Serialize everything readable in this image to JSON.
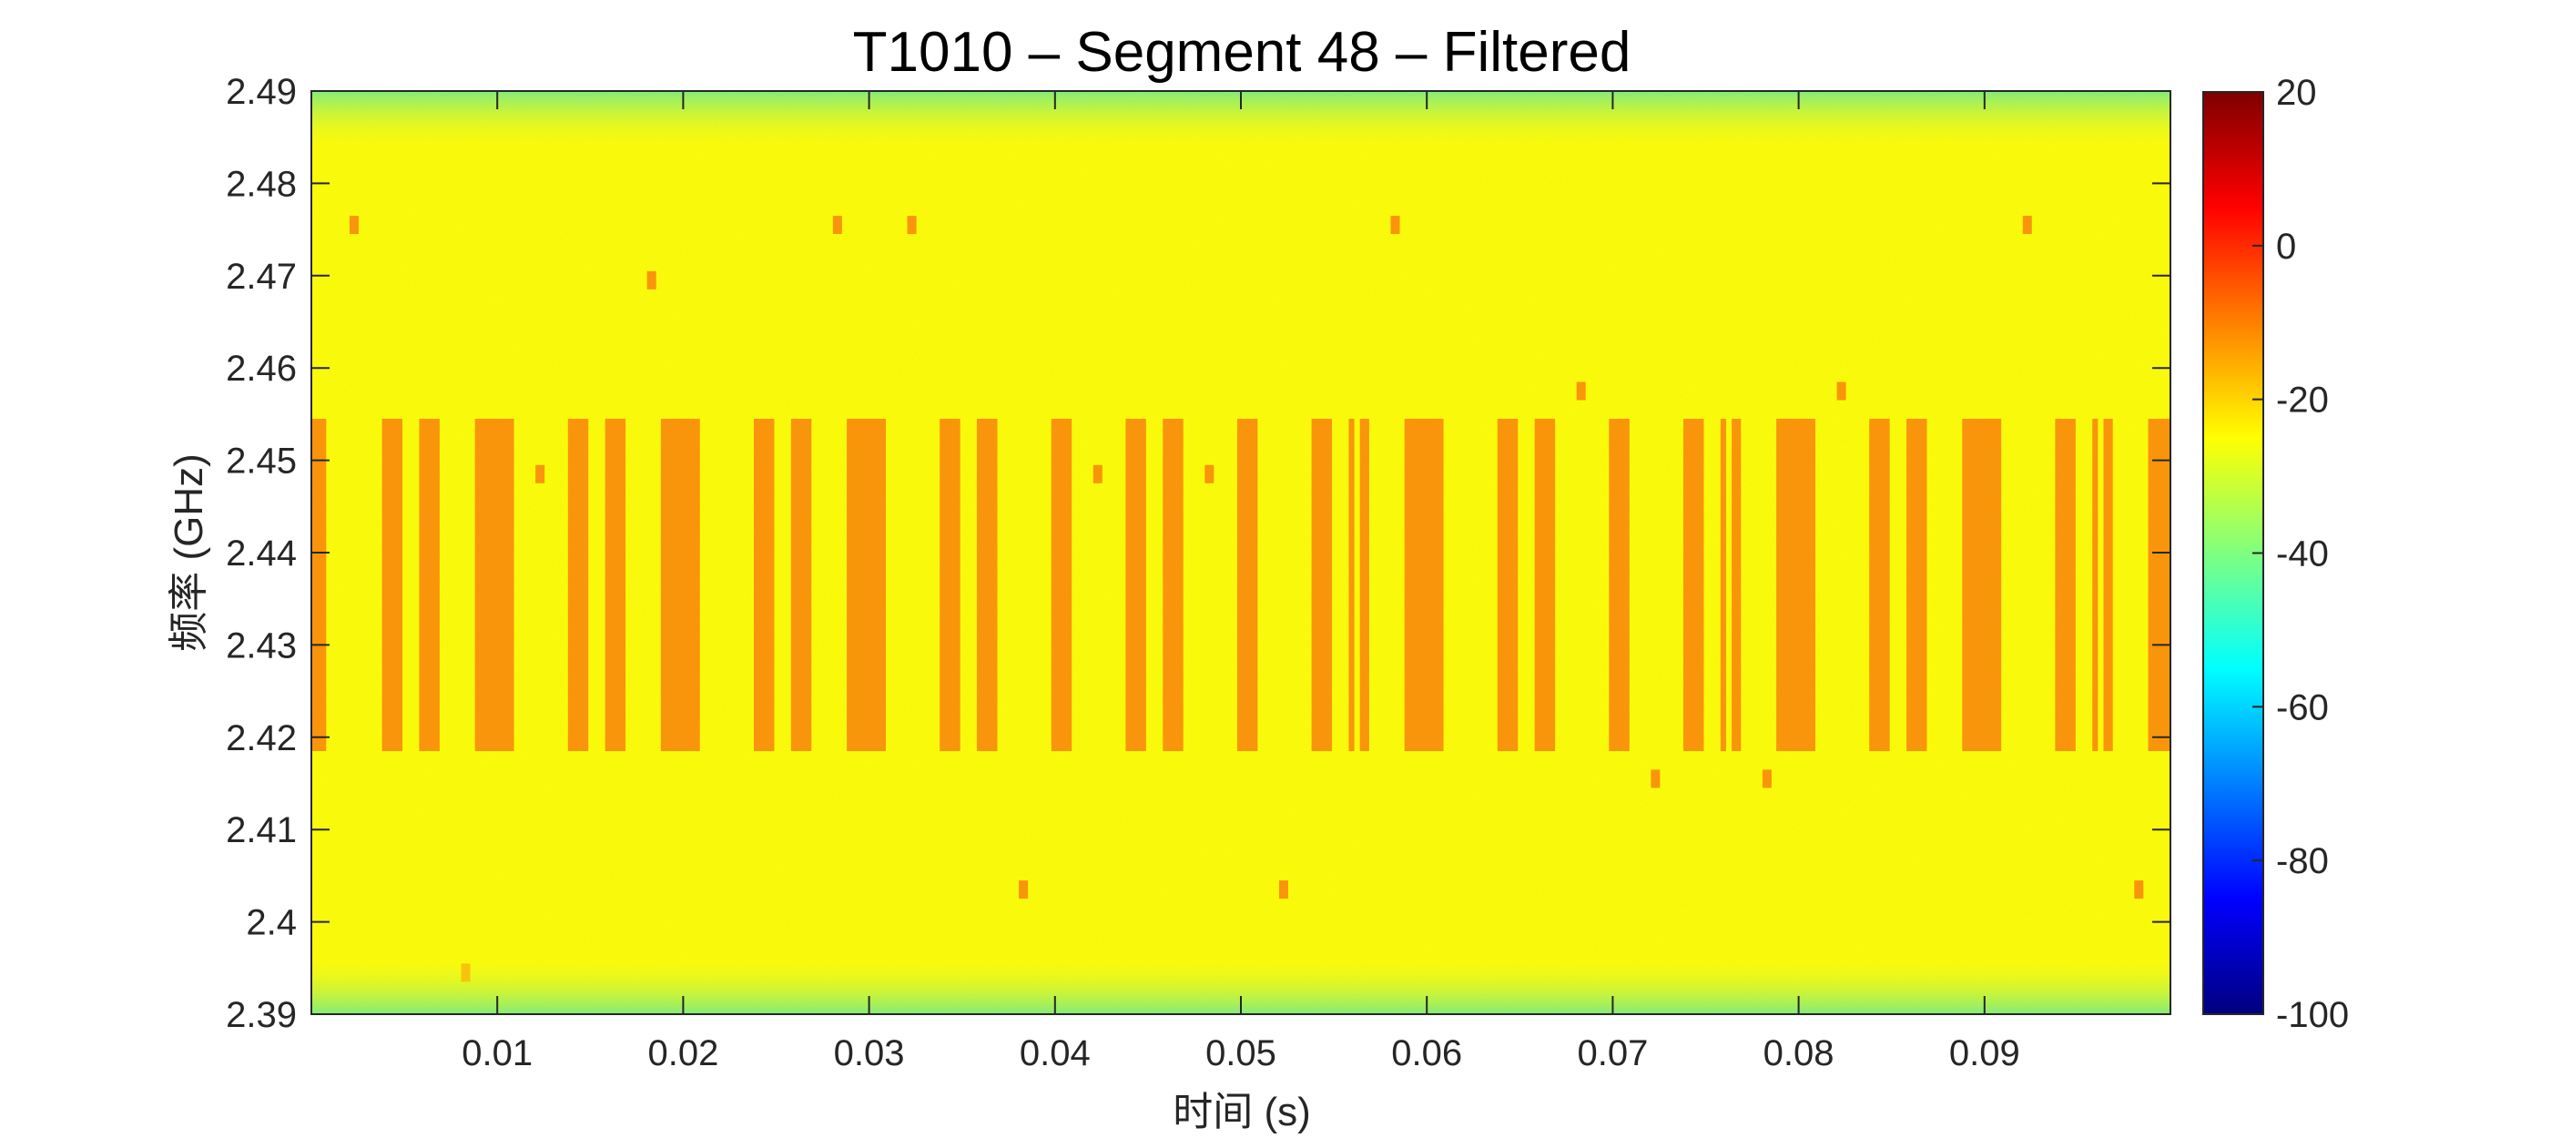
{
  "chart_data": {
    "type": "heatmap",
    "title": "T1010 – Segment 48 – Filtered",
    "xlabel": "时间 (s)",
    "ylabel": "频率 (GHz)",
    "xlim": [
      0,
      0.1
    ],
    "ylim": [
      2.39,
      2.49
    ],
    "x_ticks": [
      0.01,
      0.02,
      0.03,
      0.04,
      0.05,
      0.06,
      0.07,
      0.08,
      0.09
    ],
    "x_tick_labels": [
      "0.01",
      "0.02",
      "0.03",
      "0.04",
      "0.05",
      "0.06",
      "0.07",
      "0.08",
      "0.09"
    ],
    "y_ticks": [
      2.39,
      2.4,
      2.41,
      2.42,
      2.43,
      2.44,
      2.45,
      2.46,
      2.47,
      2.48,
      2.49
    ],
    "y_tick_labels": [
      "2.39",
      "2.4",
      "2.41",
      "2.42",
      "2.43",
      "2.44",
      "2.45",
      "2.46",
      "2.47",
      "2.48",
      "2.49"
    ],
    "colormap": "jet",
    "color_limits": [
      -100,
      20
    ],
    "colorbar_ticks": [
      20,
      0,
      -20,
      -40,
      -60,
      -80,
      -100
    ],
    "colorbar_tick_labels": [
      "20",
      "0",
      "-20",
      "-40",
      "-60",
      "-80",
      "-100"
    ],
    "background_level": -25,
    "band_edge_level": -37,
    "burst_level": -12,
    "burst_freq_range": [
      2.4185,
      2.4545
    ],
    "bursts": [
      [
        0.0,
        0.0008
      ],
      [
        0.0038,
        0.0049
      ],
      [
        0.0058,
        0.0069
      ],
      [
        0.0088,
        0.0109
      ],
      [
        0.0138,
        0.0149
      ],
      [
        0.0158,
        0.0169
      ],
      [
        0.0188,
        0.0209
      ],
      [
        0.0238,
        0.0249
      ],
      [
        0.0258,
        0.0269
      ],
      [
        0.0288,
        0.0309
      ],
      [
        0.0338,
        0.0349
      ],
      [
        0.0358,
        0.0369
      ],
      [
        0.0398,
        0.0409
      ],
      [
        0.0438,
        0.0449
      ],
      [
        0.0458,
        0.0469
      ],
      [
        0.0498,
        0.0509
      ],
      [
        0.0538,
        0.0549
      ],
      [
        0.0558,
        0.0561
      ],
      [
        0.0564,
        0.0569
      ],
      [
        0.0588,
        0.0609
      ],
      [
        0.0638,
        0.0649
      ],
      [
        0.0658,
        0.0669
      ],
      [
        0.0698,
        0.0709
      ],
      [
        0.0738,
        0.0749
      ],
      [
        0.0758,
        0.0761
      ],
      [
        0.0764,
        0.0769
      ],
      [
        0.0788,
        0.0809
      ],
      [
        0.0838,
        0.0849
      ],
      [
        0.0858,
        0.0869
      ],
      [
        0.0888,
        0.0909
      ],
      [
        0.0938,
        0.0949
      ],
      [
        0.0958,
        0.0961
      ],
      [
        0.0964,
        0.0969
      ],
      [
        0.0988,
        0.1
      ]
    ],
    "blips": [
      {
        "t": 0.0023,
        "f": 2.4755,
        "level": -12
      },
      {
        "t": 0.0083,
        "f": 2.3945,
        "level": -18
      },
      {
        "t": 0.0123,
        "f": 2.4485,
        "level": -12
      },
      {
        "t": 0.0183,
        "f": 2.4695,
        "level": -12
      },
      {
        "t": 0.0283,
        "f": 2.4755,
        "level": -12
      },
      {
        "t": 0.0323,
        "f": 2.4755,
        "level": -12
      },
      {
        "t": 0.0383,
        "f": 2.4035,
        "level": -12
      },
      {
        "t": 0.0423,
        "f": 2.4485,
        "level": -12
      },
      {
        "t": 0.0483,
        "f": 2.4485,
        "level": -12
      },
      {
        "t": 0.0523,
        "f": 2.4035,
        "level": -12
      },
      {
        "t": 0.0583,
        "f": 2.4755,
        "level": -12
      },
      {
        "t": 0.0683,
        "f": 2.4575,
        "level": -12
      },
      {
        "t": 0.0723,
        "f": 2.4155,
        "level": -12
      },
      {
        "t": 0.0783,
        "f": 2.4155,
        "level": -12
      },
      {
        "t": 0.0823,
        "f": 2.4575,
        "level": -12
      },
      {
        "t": 0.0923,
        "f": 2.4755,
        "level": -12
      },
      {
        "t": 0.0983,
        "f": 2.4035,
        "level": -12
      }
    ],
    "grid": false
  }
}
